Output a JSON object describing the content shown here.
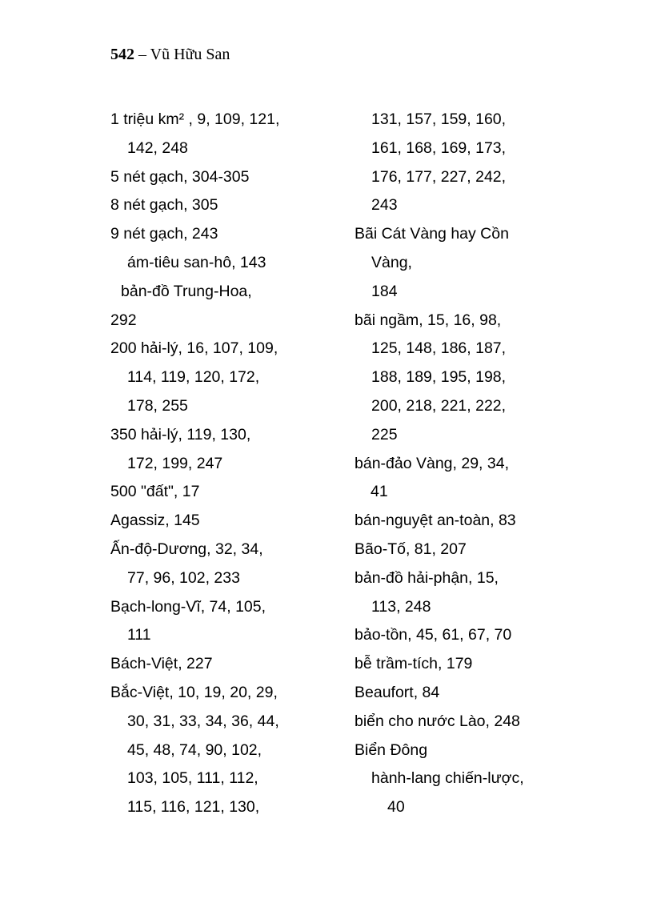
{
  "header": {
    "page_number": "542",
    "separator": " – ",
    "author": "Vũ Hữu San"
  },
  "left_column": [
    {
      "text": "1 triệu km² , 9, 109, 121,",
      "indent": 0
    },
    {
      "text": "142, 248",
      "indent": 1
    },
    {
      "text": "5 nét gạch, 304-305",
      "indent": 0
    },
    {
      "text": "8 nét gạch, 305",
      "indent": 0
    },
    {
      "text": "9 nét gạch, 243",
      "indent": 0
    },
    {
      "text": "ám-tiêu san-hô, 143",
      "indent": 1
    },
    {
      "text": "bản-đồ Trung-Hoa,",
      "indent": 2
    },
    {
      "text": "292",
      "indent": 0
    },
    {
      "text": "200 hải-lý, 16, 107, 109,",
      "indent": 0
    },
    {
      "text": "114, 119, 120, 172,",
      "indent": 1
    },
    {
      "text": "178, 255",
      "indent": 1
    },
    {
      "text": "350 hải-lý, 119, 130,",
      "indent": 0
    },
    {
      "text": "172, 199, 247",
      "indent": 1
    },
    {
      "text": "500 \"đất\", 17",
      "indent": 0
    },
    {
      "text": "Agassiz, 145",
      "indent": 0
    },
    {
      "text": "Ấn-độ-Dương, 32, 34,",
      "indent": 0
    },
    {
      "text": "77, 96, 102, 233",
      "indent": 1
    },
    {
      "text": "Bạch-long-Vĩ, 74, 105,",
      "indent": 0
    },
    {
      "text": "111",
      "indent": 1
    },
    {
      "text": "Bách-Việt, 227",
      "indent": 0
    },
    {
      "text": "Bắc-Việt, 10, 19, 20, 29,",
      "indent": 0
    },
    {
      "text": "30, 31, 33, 34, 36, 44,",
      "indent": 1
    },
    {
      "text": "45, 48, 74, 90, 102,",
      "indent": 1
    },
    {
      "text": "103, 105, 111, 112,",
      "indent": 1
    },
    {
      "text": "115, 116, 121, 130,",
      "indent": 1
    }
  ],
  "right_column": [
    {
      "text": "131, 157, 159, 160,",
      "indent": 1
    },
    {
      "text": "161, 168, 169, 173,",
      "indent": 1
    },
    {
      "text": "176, 177, 227, 242,",
      "indent": 1
    },
    {
      "text": "243",
      "indent": 1
    },
    {
      "text": "Bãi Cát Vàng hay Cồn",
      "indent": 0
    },
    {
      "text": "Vàng,",
      "indent": 1
    },
    {
      "text": "184",
      "indent": 1
    },
    {
      "text": "bãi ngầm, 15, 16, 98,",
      "indent": 0
    },
    {
      "text": "125, 148, 186, 187,",
      "indent": 1
    },
    {
      "text": "188, 189, 195, 198,",
      "indent": 1
    },
    {
      "text": "200, 218, 221, 222,",
      "indent": 1
    },
    {
      "text": "225",
      "indent": 1
    },
    {
      "text": "bán-đảo Vàng, 29, 34,",
      "indent": 0
    },
    {
      "text": "41",
      "indent": 4
    },
    {
      "text": "bán-nguyệt an-toàn, 83",
      "indent": 0
    },
    {
      "text": "Bão-Tố, 81, 207",
      "indent": 0
    },
    {
      "text": "bản-đồ hải-phận, 15,",
      "indent": 0
    },
    {
      "text": "113, 248",
      "indent": 1
    },
    {
      "text": "bảo-tồn, 45, 61, 67, 70",
      "indent": 0
    },
    {
      "text": "bễ trầm-tích, 179",
      "indent": 0
    },
    {
      "text": "Beaufort, 84",
      "indent": 0
    },
    {
      "text": "biển cho nước Lào, 248",
      "indent": 0
    },
    {
      "text": "Biển Đông",
      "indent": 0
    },
    {
      "text": "hành-lang chiến-lược,",
      "indent": 1
    },
    {
      "text": "40",
      "indent": 3
    }
  ]
}
